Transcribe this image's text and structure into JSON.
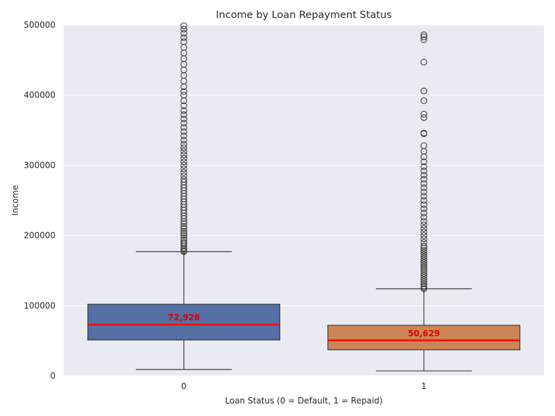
{
  "chart_data": {
    "type": "box",
    "title": "Income by Loan Repayment Status",
    "xlabel": "Loan Status (0 = Default, 1 = Repaid)",
    "ylabel": "Income",
    "ylim": [
      0,
      500000
    ],
    "yticks": [
      0,
      100000,
      200000,
      300000,
      400000,
      500000
    ],
    "grid": true,
    "categories": [
      "0",
      "1"
    ],
    "boxes": [
      {
        "category": "0",
        "color": "#5470a4",
        "q1": 51000,
        "median": 72928,
        "q3": 102000,
        "whisker_low": 9000,
        "whisker_high": 177000,
        "median_label": "72,928",
        "outliers": [
          177000,
          178000,
          180000,
          182000,
          185000,
          188000,
          190000,
          193000,
          196000,
          200000,
          203000,
          206000,
          210000,
          213000,
          217000,
          220000,
          224000,
          228000,
          232000,
          236000,
          240000,
          244000,
          248000,
          252000,
          256000,
          260000,
          264000,
          268000,
          272000,
          276000,
          280000,
          285000,
          290000,
          295000,
          300000,
          305000,
          310000,
          315000,
          320000,
          325000,
          330000,
          336000,
          342000,
          348000,
          354000,
          360000,
          366000,
          372000,
          378000,
          385000,
          392000,
          400000,
          405000,
          412000,
          420000,
          428000,
          436000,
          444000,
          452000,
          460000,
          468000,
          476000,
          482000,
          488000,
          494000,
          499000
        ]
      },
      {
        "category": "1",
        "color": "#cc8557",
        "q1": 37000,
        "median": 50629,
        "q3": 72000,
        "whisker_low": 7000,
        "whisker_high": 124000,
        "median_label": "50,629",
        "outliers": [
          124000,
          126000,
          128000,
          131000,
          134000,
          137000,
          140000,
          143000,
          146000,
          149000,
          152000,
          155000,
          158000,
          161000,
          164000,
          167000,
          170000,
          173000,
          176000,
          179000,
          182000,
          185000,
          190000,
          195000,
          200000,
          205000,
          210000,
          215000,
          220000,
          226000,
          232000,
          238000,
          244000,
          250000,
          256000,
          262000,
          268000,
          274000,
          280000,
          286000,
          292000,
          298000,
          305000,
          312000,
          320000,
          328000,
          345000,
          346000,
          368000,
          373000,
          392000,
          406000,
          447000,
          479000,
          483000,
          486000
        ]
      }
    ]
  }
}
